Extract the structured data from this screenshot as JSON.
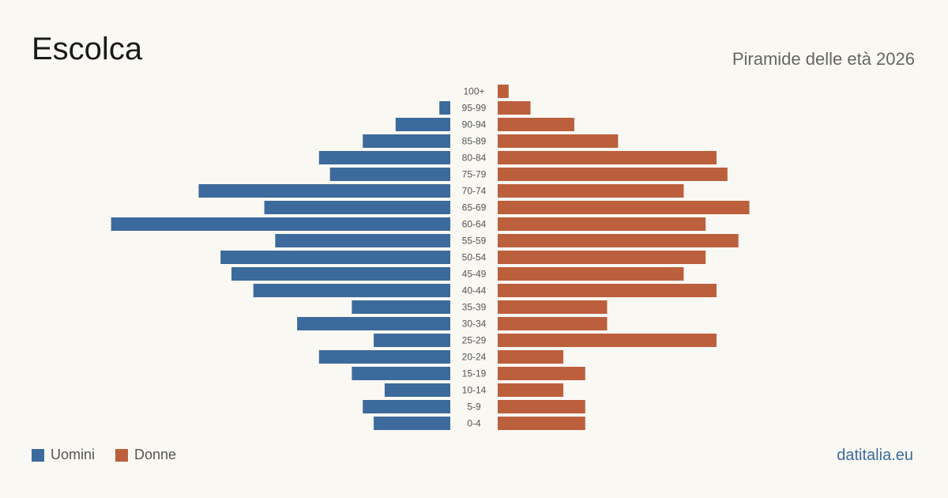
{
  "title": "Escolca",
  "subtitle": "Piramide delle età 2026",
  "brand": "datitalia.eu",
  "colors": {
    "male": "#3d6a9c",
    "female": "#bc5f3c",
    "background": "#faf8f3"
  },
  "chart_data": {
    "type": "bar",
    "orientation": "horizontal-pyramid",
    "categories": [
      "100+",
      "95-99",
      "90-94",
      "85-89",
      "80-84",
      "75-79",
      "70-74",
      "65-69",
      "60-64",
      "55-59",
      "50-54",
      "45-49",
      "40-44",
      "35-39",
      "30-34",
      "25-29",
      "20-24",
      "15-19",
      "10-14",
      "5-9",
      "0-4"
    ],
    "series": [
      {
        "name": "Uomini",
        "values": [
          0,
          1,
          5,
          8,
          12,
          11,
          23,
          17,
          31,
          16,
          21,
          20,
          18,
          9,
          14,
          7,
          12,
          9,
          6,
          8,
          7
        ]
      },
      {
        "name": "Donne",
        "values": [
          1,
          3,
          7,
          11,
          20,
          21,
          17,
          23,
          19,
          22,
          19,
          17,
          20,
          10,
          10,
          20,
          6,
          8,
          6,
          8,
          8
        ]
      }
    ],
    "legend_position": "bottom-left",
    "grid": false
  }
}
